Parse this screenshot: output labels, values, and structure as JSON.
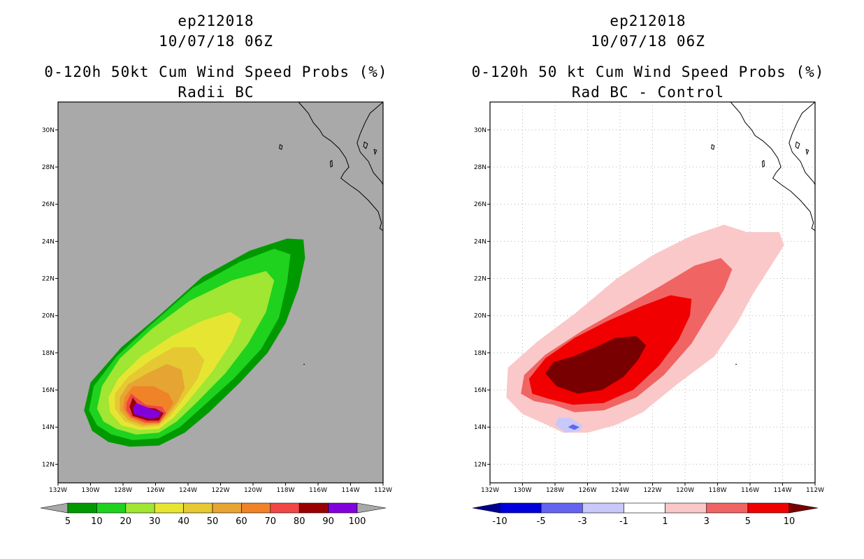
{
  "chart_data": [
    {
      "type": "heatmap",
      "id": "radii_bc",
      "title_lines": [
        "ep212018",
        "10/07/18 06Z",
        "0-120h 50kt Cum Wind Speed Probs (%)",
        "Radii BC"
      ],
      "x_ticks": [
        "132W",
        "130W",
        "128W",
        "126W",
        "124W",
        "122W",
        "120W",
        "118W",
        "116W",
        "114W",
        "112W"
      ],
      "y_ticks": [
        "12N",
        "14N",
        "16N",
        "18N",
        "20N",
        "22N",
        "24N",
        "26N",
        "28N",
        "30N"
      ],
      "x_range_lon": [
        -132,
        -112
      ],
      "y_range_lat": [
        11,
        31.5
      ],
      "background": "#a9a9a9",
      "grid": false,
      "contour_levels": [
        5,
        10,
        20,
        30,
        40,
        50,
        60,
        70,
        80,
        90,
        100
      ],
      "colorbar_labels": [
        "5",
        "10",
        "20",
        "30",
        "40",
        "50",
        "60",
        "70",
        "80",
        "90",
        "100"
      ],
      "colors": [
        "#009a00",
        "#1ed21e",
        "#a0e632",
        "#e6e632",
        "#e6c832",
        "#e6a532",
        "#f08228",
        "#f04646",
        "#9a0000",
        "#8200dc"
      ],
      "under_color": "#a9a9a9",
      "over_color": "#a9a9a9",
      "peak_region": "near 15N 126.5W (90-100%)"
    },
    {
      "type": "heatmap",
      "id": "rad_bc_minus_control",
      "title_lines": [
        "ep212018",
        "10/07/18 06Z",
        "0-120h 50 kt Cum Wind Speed Probs (%)",
        "Rad BC - Control"
      ],
      "x_ticks": [
        "132W",
        "130W",
        "128W",
        "126W",
        "124W",
        "122W",
        "120W",
        "118W",
        "116W",
        "114W",
        "112W"
      ],
      "y_ticks": [
        "12N",
        "14N",
        "16N",
        "18N",
        "20N",
        "22N",
        "24N",
        "26N",
        "28N",
        "30N"
      ],
      "x_range_lon": [
        -132,
        -112
      ],
      "y_range_lat": [
        11,
        31.5
      ],
      "background": "#ffffff",
      "grid": true,
      "contour_levels": [
        -10,
        -5,
        -3,
        -1,
        1,
        3,
        5,
        10
      ],
      "colorbar_labels": [
        "-10",
        "-5",
        "-3",
        "-1",
        "1",
        "3",
        "5",
        "10"
      ],
      "colors": [
        "#0000dc",
        "#6464f0",
        "#c8c8fa",
        "#ffffff",
        "#fac8c8",
        "#f06464",
        "#f00000"
      ],
      "under_color": "#00008c",
      "over_color": "#780000",
      "max_region": "near 17.5N 125W (>10)",
      "min_region": "near 14N 127W (-3 to -5)"
    }
  ]
}
